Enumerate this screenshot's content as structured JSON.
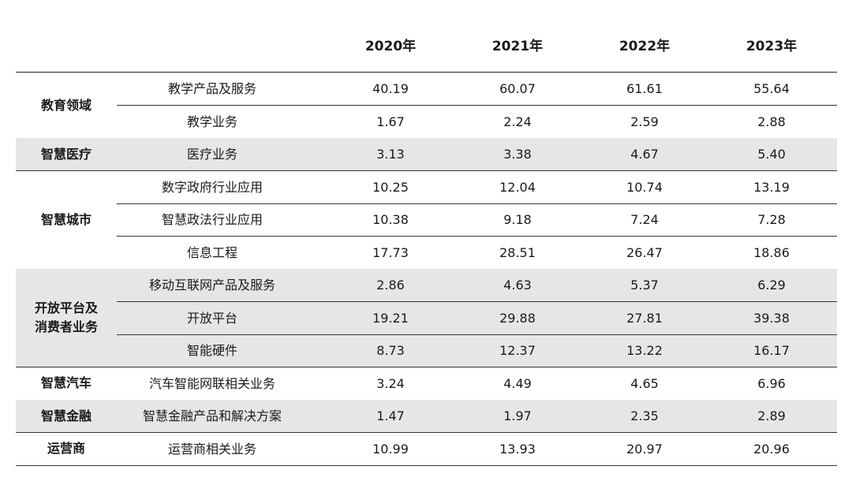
{
  "years": [
    "2020年",
    "2021年",
    "2022年",
    "2023年"
  ],
  "groups": [
    {
      "title": "教育领域",
      "rows": [
        {
          "item": "教学产品及服务",
          "values": [
            "40.19",
            "60.07",
            "61.61",
            "55.64"
          ]
        },
        {
          "item": "教学业务",
          "values": [
            "1.67",
            "2.24",
            "2.59",
            "2.88"
          ]
        }
      ]
    },
    {
      "title": "智慧医疗",
      "rows": [
        {
          "item": "医疗业务",
          "values": [
            "3.13",
            "3.38",
            "4.67",
            "5.40"
          ]
        }
      ]
    },
    {
      "title": "智慧城市",
      "rows": [
        {
          "item": "数字政府行业应用",
          "values": [
            "10.25",
            "12.04",
            "10.74",
            "13.19"
          ]
        },
        {
          "item": "智慧政法行业应用",
          "values": [
            "10.38",
            "9.18",
            "7.24",
            "7.28"
          ]
        },
        {
          "item": "信息工程",
          "values": [
            "17.73",
            "28.51",
            "26.47",
            "18.86"
          ]
        }
      ]
    },
    {
      "title": "开放平台及\n消费者业务",
      "rows": [
        {
          "item": "移动互联网产品及服务",
          "values": [
            "2.86",
            "4.63",
            "5.37",
            "6.29"
          ]
        },
        {
          "item": "开放平台",
          "values": [
            "19.21",
            "29.88",
            "27.81",
            "39.38"
          ]
        },
        {
          "item": "智能硬件",
          "values": [
            "8.73",
            "12.37",
            "13.22",
            "16.17"
          ]
        }
      ]
    },
    {
      "title": "智慧汽车",
      "rows": [
        {
          "item": "汽车智能网联相关业务",
          "values": [
            "3.24",
            "4.49",
            "4.65",
            "6.96"
          ]
        }
      ]
    },
    {
      "title": "智慧金融",
      "rows": [
        {
          "item": "智慧金融产品和解决方案",
          "values": [
            "1.47",
            "1.97",
            "2.35",
            "2.89"
          ]
        }
      ]
    },
    {
      "title": "运营商",
      "rows": [
        {
          "item": "运营商相关业务",
          "values": [
            "10.99",
            "13.93",
            "20.97",
            "20.96"
          ]
        }
      ]
    }
  ]
}
